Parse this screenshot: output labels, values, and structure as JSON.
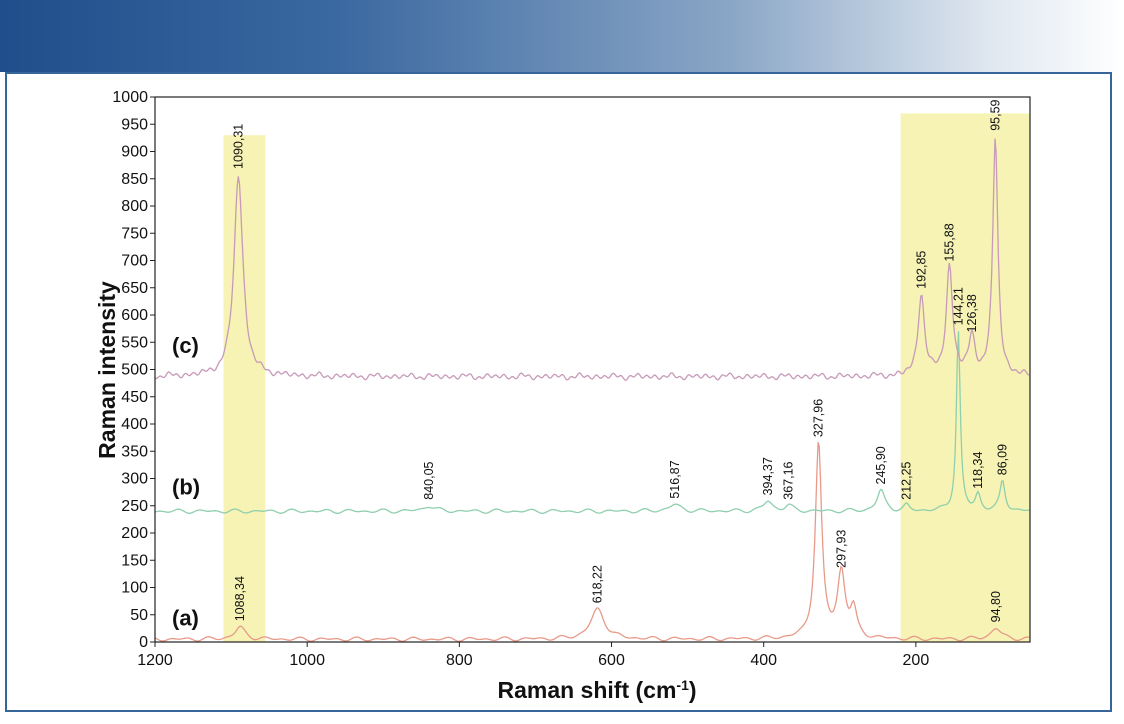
{
  "chart_data": {
    "type": "line",
    "xlabel": "Raman shift (cm",
    "xlabel_sup": "-1",
    "xlabel_close": ")",
    "ylabel": "Raman intensity",
    "xlim": [
      1200,
      50
    ],
    "ylim": [
      0,
      1000
    ],
    "x_ticks": [
      1200,
      1000,
      800,
      600,
      400,
      200
    ],
    "y_ticks": [
      0,
      50,
      100,
      150,
      200,
      250,
      300,
      350,
      400,
      450,
      500,
      550,
      600,
      650,
      700,
      750,
      800,
      850,
      900,
      950,
      1000
    ],
    "grid": false,
    "highlight_bands": [
      {
        "x_from": 1110,
        "x_to": 1055,
        "y_top": 930,
        "color": "#f6f3b4"
      },
      {
        "x_from": 220,
        "x_to": 50,
        "y_top": 970,
        "color": "#f6f3b4"
      }
    ],
    "series": [
      {
        "tag": "(a)",
        "tag_y": 45,
        "color": "#e89a8a",
        "baseline": 5,
        "peaks": [
          {
            "x": 1088.34,
            "height": 22,
            "width": 8,
            "label": "1088,34"
          },
          {
            "x": 618.22,
            "height": 55,
            "width": 11,
            "label": "618,22"
          },
          {
            "x": 327.96,
            "height": 360,
            "width": 5,
            "label": "327,96"
          },
          {
            "x": 297.93,
            "height": 120,
            "width": 6,
            "label": "297,93"
          },
          {
            "x": 282,
            "height": 50,
            "width": 5,
            "label": ""
          },
          {
            "x": 94.8,
            "height": 20,
            "width": 8,
            "label": "94,80"
          }
        ]
      },
      {
        "tag": "(b)",
        "tag_y": 285,
        "color": "#8fcfae",
        "baseline": 240,
        "peaks": [
          {
            "x": 840.05,
            "height": 10,
            "width": 8,
            "label": "840,05"
          },
          {
            "x": 516.87,
            "height": 12,
            "width": 9,
            "label": "516,87"
          },
          {
            "x": 394.37,
            "height": 18,
            "width": 7,
            "label": "394,37"
          },
          {
            "x": 367.16,
            "height": 10,
            "width": 6,
            "label": "367,16"
          },
          {
            "x": 245.9,
            "height": 38,
            "width": 6,
            "label": "245,90"
          },
          {
            "x": 212.25,
            "height": 10,
            "width": 4,
            "label": "212,25"
          },
          {
            "x": 144.21,
            "height": 330,
            "width": 3,
            "label": "144,21"
          },
          {
            "x": 118.34,
            "height": 30,
            "width": 4,
            "label": "118,34"
          },
          {
            "x": 86.09,
            "height": 55,
            "width": 4,
            "label": "86,09"
          }
        ]
      },
      {
        "tag": "(c)",
        "tag_y": 545,
        "color": "#c79ab8",
        "baseline": 487,
        "peaks": [
          {
            "x": 1090.31,
            "height": 370,
            "width": 7,
            "label": "1090,31"
          },
          {
            "x": 192.85,
            "height": 150,
            "width": 5,
            "label": "192,85"
          },
          {
            "x": 155.88,
            "height": 200,
            "width": 5,
            "label": "155,88"
          },
          {
            "x": 126.38,
            "height": 70,
            "width": 5,
            "label": "126,38"
          },
          {
            "x": 95.59,
            "height": 440,
            "width": 4,
            "label": "95,59"
          }
        ]
      }
    ]
  }
}
